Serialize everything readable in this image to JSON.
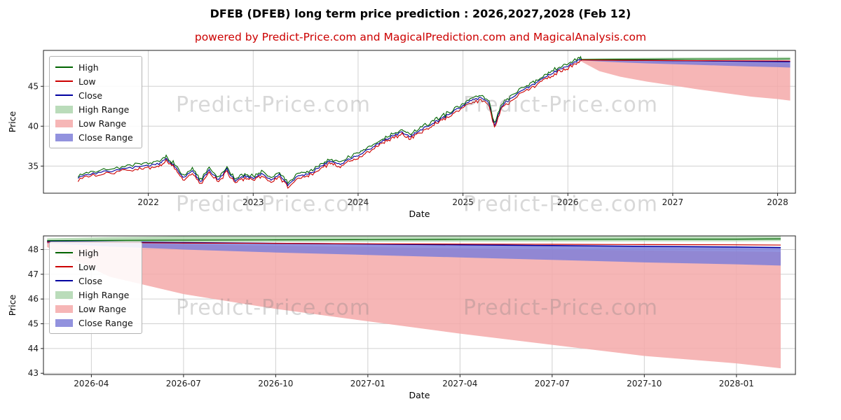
{
  "title": "DFEB (DFEB) long term price prediction : 2026,2027,2028 (Feb 12)",
  "subtitle": "powered by Predict-Price.com and MagicalPrediction.com and MagicalAnalysis.com",
  "watermark": "Predict-Price.com",
  "colors": {
    "high": "#006400",
    "low": "#cc0000",
    "close": "#0000a0",
    "high_range": "#aed6ae",
    "low_range": "#f4a9a9",
    "close_range": "#7f7fd8",
    "grid": "#d0d0d0",
    "axis": "#222222",
    "subtitle": "#cc0000"
  },
  "legend": [
    {
      "label": "High",
      "type": "line",
      "color": "high"
    },
    {
      "label": "Low",
      "type": "line",
      "color": "low"
    },
    {
      "label": "Close",
      "type": "line",
      "color": "close"
    },
    {
      "label": "High Range",
      "type": "band",
      "color": "high_range"
    },
    {
      "label": "Low Range",
      "type": "band",
      "color": "low_range"
    },
    {
      "label": "Close Range",
      "type": "band",
      "color": "close_range"
    }
  ],
  "chart_data": [
    {
      "type": "line",
      "title": "",
      "xlabel": "Date",
      "ylabel": "Price",
      "xlim": [
        2021.0,
        2028.17
      ],
      "ylim": [
        31.6,
        49.5
      ],
      "xticks": [
        2022,
        2023,
        2024,
        2025,
        2026,
        2027,
        2028
      ],
      "xtick_labels": [
        "2022",
        "2023",
        "2024",
        "2025",
        "2026",
        "2027",
        "2028"
      ],
      "yticks": [
        35,
        40,
        45
      ],
      "ytick_labels": [
        "35",
        "40",
        "45"
      ],
      "history": {
        "band": 0.3,
        "x": [
          2021.33,
          2021.45,
          2021.6,
          2021.75,
          2021.9,
          2022.0,
          2022.1,
          2022.17,
          2022.25,
          2022.33,
          2022.42,
          2022.5,
          2022.58,
          2022.67,
          2022.75,
          2022.83,
          2022.92,
          2023.0,
          2023.08,
          2023.17,
          2023.25,
          2023.33,
          2023.42,
          2023.5,
          2023.58,
          2023.67,
          2023.75,
          2023.83,
          2023.92,
          2024.0,
          2024.08,
          2024.17,
          2024.25,
          2024.33,
          2024.42,
          2024.5,
          2024.58,
          2024.67,
          2024.75,
          2024.83,
          2024.92,
          2025.0,
          2025.08,
          2025.17,
          2025.25,
          2025.3,
          2025.37,
          2025.45,
          2025.58,
          2025.67,
          2025.75,
          2025.83,
          2025.92,
          2026.0,
          2026.08,
          2026.13
        ],
        "close": [
          33.6,
          34.0,
          34.3,
          34.6,
          34.9,
          35.1,
          35.3,
          35.9,
          35.0,
          33.5,
          34.4,
          33.0,
          34.5,
          33.2,
          34.6,
          33.1,
          33.8,
          33.4,
          34.0,
          33.3,
          33.9,
          32.7,
          33.7,
          33.9,
          34.4,
          35.2,
          35.7,
          35.1,
          36.0,
          36.3,
          36.9,
          37.6,
          38.2,
          38.8,
          39.2,
          38.7,
          39.4,
          40.1,
          40.6,
          41.2,
          41.9,
          42.6,
          43.2,
          43.6,
          42.9,
          40.0,
          42.6,
          43.4,
          44.6,
          45.2,
          45.9,
          46.5,
          47.1,
          47.6,
          48.1,
          48.3
        ]
      },
      "forecast": {
        "x": [
          2026.13,
          2026.3,
          2026.5,
          2026.75,
          2027.0,
          2027.25,
          2027.5,
          2027.75,
          2028.0,
          2028.12
        ],
        "high": [
          48.36,
          48.37,
          48.38,
          48.39,
          48.4,
          48.41,
          48.41,
          48.42,
          48.42,
          48.43
        ],
        "low": [
          48.3,
          48.28,
          48.26,
          48.25,
          48.23,
          48.22,
          48.21,
          48.2,
          48.19,
          48.18
        ],
        "close": [
          48.33,
          48.31,
          48.28,
          48.25,
          48.22,
          48.19,
          48.16,
          48.13,
          48.1,
          48.08
        ],
        "high_range_upper": [
          48.45,
          48.5,
          48.54,
          48.57,
          48.59,
          48.61,
          48.62,
          48.63,
          48.64,
          48.65
        ],
        "high_range_lower": [
          48.28,
          48.29,
          48.3,
          48.31,
          48.31,
          48.32,
          48.32,
          48.33,
          48.33,
          48.34
        ],
        "low_range_upper": [
          48.28,
          48.24,
          48.2,
          48.15,
          48.1,
          48.05,
          48.0,
          47.96,
          47.92,
          47.9
        ],
        "low_range_lower": [
          48.1,
          46.9,
          46.2,
          45.6,
          45.1,
          44.6,
          44.15,
          43.7,
          43.4,
          43.2
        ],
        "close_range_upper": [
          48.34,
          48.32,
          48.29,
          48.26,
          48.23,
          48.2,
          48.17,
          48.14,
          48.11,
          48.1
        ],
        "close_range_lower": [
          48.25,
          48.12,
          48.0,
          47.88,
          47.78,
          47.68,
          47.58,
          47.48,
          47.4,
          47.35
        ]
      }
    },
    {
      "type": "line",
      "title": "",
      "xlabel": "Date",
      "ylabel": "Price",
      "xlim": [
        2026.12,
        2028.16
      ],
      "ylim": [
        42.95,
        48.55
      ],
      "xticks": [
        2026.25,
        2026.5,
        2026.75,
        2027.0,
        2027.25,
        2027.5,
        2027.75,
        2028.0
      ],
      "xtick_labels": [
        "2026-04",
        "2026-07",
        "2026-10",
        "2027-01",
        "2027-04",
        "2027-07",
        "2027-10",
        "2028-01"
      ],
      "yticks": [
        43,
        44,
        45,
        46,
        47,
        48
      ],
      "ytick_labels": [
        "43",
        "44",
        "45",
        "46",
        "47",
        "48"
      ],
      "forecast": {
        "x": [
          2026.13,
          2026.3,
          2026.5,
          2026.75,
          2027.0,
          2027.25,
          2027.5,
          2027.75,
          2028.0,
          2028.12
        ],
        "high": [
          48.36,
          48.37,
          48.38,
          48.39,
          48.4,
          48.41,
          48.41,
          48.42,
          48.42,
          48.43
        ],
        "low": [
          48.3,
          48.28,
          48.26,
          48.25,
          48.23,
          48.22,
          48.21,
          48.2,
          48.19,
          48.18
        ],
        "close": [
          48.33,
          48.31,
          48.28,
          48.25,
          48.22,
          48.19,
          48.16,
          48.13,
          48.1,
          48.08
        ],
        "high_range_upper": [
          48.45,
          48.5,
          48.54,
          48.57,
          48.59,
          48.61,
          48.62,
          48.63,
          48.64,
          48.65
        ],
        "high_range_lower": [
          48.28,
          48.29,
          48.3,
          48.31,
          48.31,
          48.32,
          48.32,
          48.33,
          48.33,
          48.34
        ],
        "low_range_upper": [
          48.28,
          48.24,
          48.2,
          48.15,
          48.1,
          48.05,
          48.0,
          47.96,
          47.92,
          47.9
        ],
        "low_range_lower": [
          48.1,
          46.9,
          46.2,
          45.6,
          45.1,
          44.6,
          44.15,
          43.7,
          43.4,
          43.2
        ],
        "close_range_upper": [
          48.34,
          48.32,
          48.29,
          48.26,
          48.23,
          48.2,
          48.17,
          48.14,
          48.11,
          48.1
        ],
        "close_range_lower": [
          48.25,
          48.12,
          48.0,
          47.88,
          47.78,
          47.68,
          47.58,
          47.48,
          47.4,
          47.35
        ]
      }
    }
  ]
}
